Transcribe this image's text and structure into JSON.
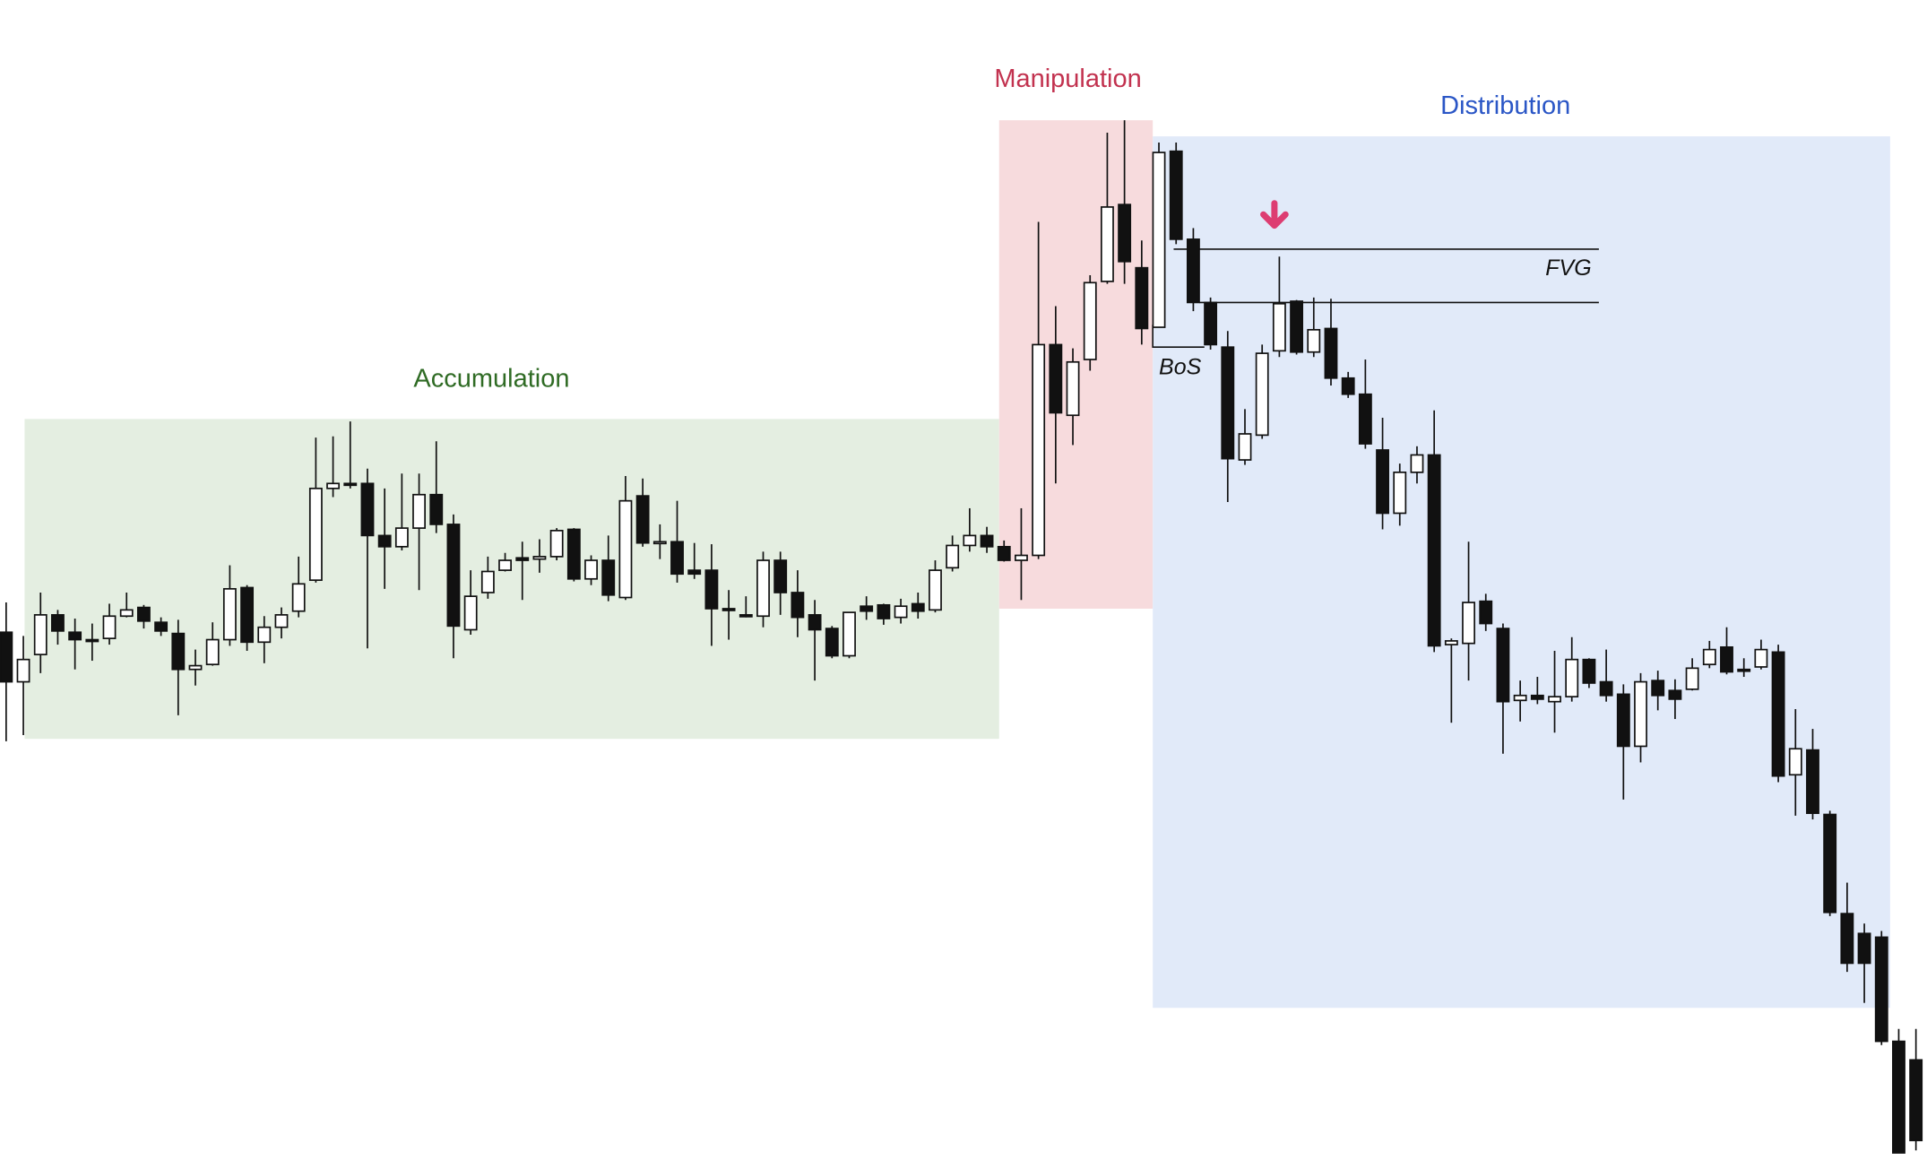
{
  "chart_data": {
    "type": "candlestick",
    "title": "",
    "xlabel": "",
    "ylabel": "",
    "grid": false,
    "colors": {
      "bullish_body": "#ffffff",
      "bearish_body": "#111111",
      "wick": "#111111"
    },
    "zones": [
      {
        "label": "Accumulation",
        "fill": "#e4eee1",
        "text_color": "#2f6b24"
      },
      {
        "label": "Manipulation",
        "fill": "#f7dbdd",
        "text_color": "#c2324f"
      },
      {
        "label": "Distribution",
        "fill": "#e1eaf9",
        "text_color": "#2a56c6"
      }
    ],
    "annotations": [
      {
        "type": "label",
        "text": "FVG"
      },
      {
        "type": "label",
        "text": "BoS"
      },
      {
        "type": "arrow",
        "direction": "down",
        "color": "#dd3d72"
      }
    ]
  }
}
